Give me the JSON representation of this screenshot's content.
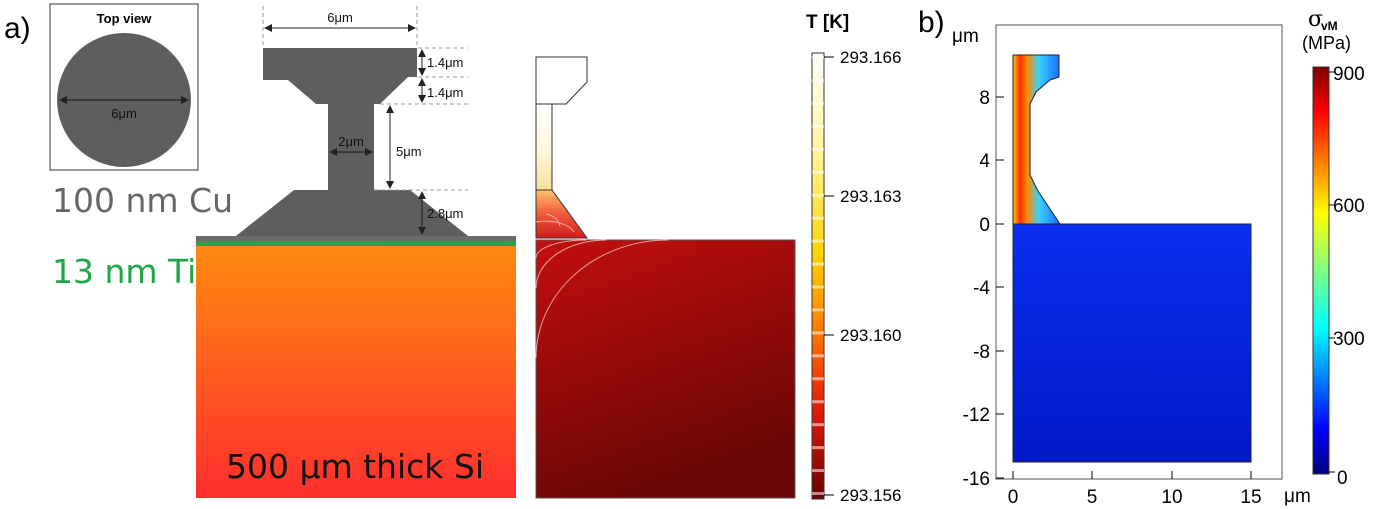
{
  "panel_a": {
    "letter": "a)",
    "top_view": {
      "title": "Top view",
      "diameter": "6μm"
    },
    "dimensions": {
      "top_width": "6μm",
      "cap_height": "1.4μm",
      "neck_transition": "1.4μm",
      "neck_width": "2μm",
      "neck_height": "5μm",
      "base_height": "2.8μm"
    },
    "layers": {
      "cu": "100 nm Cu",
      "ti": "13 nm Ti",
      "si": "500 μm thick Si"
    },
    "colors": {
      "pillar": "#5e5e5e",
      "cu_line": "#6b6b6b",
      "ti_line": "#1fa54a",
      "si_top": "#ff8a10",
      "si_bottom": "#ff2e2e"
    },
    "temperature_colorbar": {
      "title": "T [K]",
      "ticks": [
        "293.166",
        "293.163",
        "293.160",
        "293.156"
      ]
    }
  },
  "panel_b": {
    "letter": "b)",
    "y_unit": "μm",
    "x_unit": "μm",
    "y_ticks": [
      "8",
      "4",
      "0",
      "-4",
      "-8",
      "-12",
      "-16"
    ],
    "x_ticks": [
      "0",
      "5",
      "10",
      "15"
    ],
    "stress_colorbar": {
      "title_symbol": "σ",
      "title_subscript": "vM",
      "unit": "(MPa)",
      "ticks": [
        "900",
        "600",
        "300",
        "0"
      ]
    }
  }
}
